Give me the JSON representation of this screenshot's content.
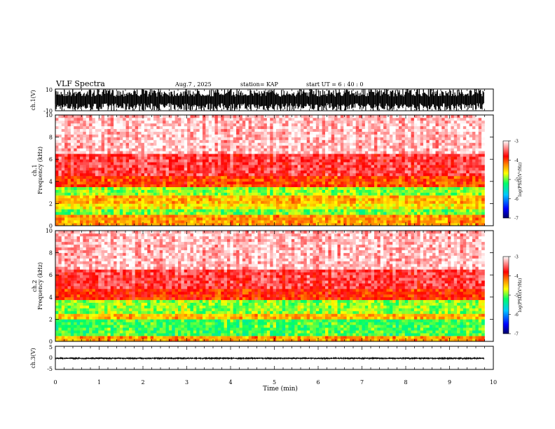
{
  "header": {
    "title": "VLF Spectra",
    "date": "Aug.7  , 2025",
    "station": "station= KAP",
    "start": "start  UT  =   6  : 40 : 0"
  },
  "chart_data": [
    {
      "type": "line",
      "name": "ch1-waveform",
      "ylabel": "ch.1(V)",
      "ylim": [
        -10,
        10
      ],
      "yticks": [
        "10",
        "-10"
      ],
      "xlim": [
        0,
        10
      ],
      "description_values": {
        "envelope_min": -10,
        "envelope_max": 10,
        "data_end_min": 9.8
      }
    },
    {
      "type": "heatmap",
      "name": "ch1-spectrogram",
      "ylabel": "ch.1\nFrequency  (kHz)",
      "ylim": [
        0,
        10
      ],
      "yticks": [
        "0",
        "2",
        "4",
        "6",
        "8",
        "10"
      ],
      "xlim": [
        0,
        10
      ],
      "data_end_min": 9.8,
      "bands": [
        {
          "from_khz": 0.0,
          "to_khz": 0.8,
          "level": -4.3
        },
        {
          "from_khz": 0.8,
          "to_khz": 1.3,
          "level": -5.0
        },
        {
          "from_khz": 1.3,
          "to_khz": 2.0,
          "level": -4.6
        },
        {
          "from_khz": 2.0,
          "to_khz": 2.6,
          "level": -4.4
        },
        {
          "from_khz": 2.6,
          "to_khz": 3.3,
          "level": -4.9
        },
        {
          "from_khz": 3.3,
          "to_khz": 4.4,
          "level": -4.0
        },
        {
          "from_khz": 4.4,
          "to_khz": 6.5,
          "level": -3.6
        },
        {
          "from_khz": 6.5,
          "to_khz": 10.0,
          "level": -3.2
        }
      ],
      "colorbar": {
        "label": "log(PSD)(V²/Hz)",
        "ticks": [
          "-3",
          "-4",
          "-5",
          "-6",
          "-7"
        ],
        "range": [
          -7,
          -3
        ]
      }
    },
    {
      "type": "heatmap",
      "name": "ch2-spectrogram",
      "ylabel": "ch.2\nFrequency  (kHz)",
      "ylim": [
        0,
        10
      ],
      "yticks": [
        "0",
        "2",
        "4",
        "6",
        "8",
        "10"
      ],
      "xlim": [
        0,
        10
      ],
      "data_end_min": 9.8,
      "bands": [
        {
          "from_khz": 0.0,
          "to_khz": 0.5,
          "level": -4.3
        },
        {
          "from_khz": 0.5,
          "to_khz": 1.8,
          "level": -5.1
        },
        {
          "from_khz": 1.8,
          "to_khz": 2.4,
          "level": -4.4
        },
        {
          "from_khz": 2.4,
          "to_khz": 3.6,
          "level": -4.9
        },
        {
          "from_khz": 3.6,
          "to_khz": 4.6,
          "level": -3.9
        },
        {
          "from_khz": 4.6,
          "to_khz": 6.5,
          "level": -3.6
        },
        {
          "from_khz": 6.5,
          "to_khz": 10.0,
          "level": -3.2
        }
      ],
      "colorbar": {
        "label": "log(PSD)(V²/Hz)",
        "ticks": [
          "-3",
          "-4",
          "-5",
          "-6",
          "-7"
        ],
        "range": [
          -7,
          -3
        ]
      }
    },
    {
      "type": "line",
      "name": "ch3-waveform",
      "ylabel": "ch.3(V)",
      "ylim": [
        -5,
        5
      ],
      "yticks": [
        "5",
        "0",
        "-5"
      ],
      "xlim": [
        0,
        10
      ],
      "description_values": {
        "envelope_min": -0.7,
        "envelope_max": 0.3,
        "data_end_min": 9.8
      }
    }
  ],
  "xaxis": {
    "label": "Time  (min)",
    "ticks": [
      "0",
      "1",
      "2",
      "3",
      "4",
      "5",
      "6",
      "7",
      "8",
      "9",
      "10"
    ]
  },
  "colors": {
    "colormap": [
      "#000066",
      "#0000ff",
      "#00c8ff",
      "#00ff66",
      "#ffff00",
      "#ff8000",
      "#ff0000",
      "#ffffff"
    ]
  }
}
